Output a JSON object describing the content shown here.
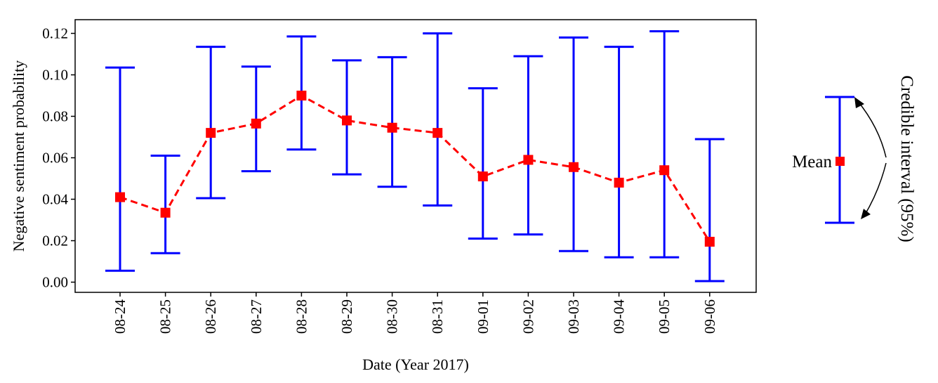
{
  "chart_data": {
    "type": "line",
    "title": "",
    "xlabel": "Date (Year 2017)",
    "ylabel": "Negative sentiment probability",
    "ylim": [
      -0.005,
      0.125
    ],
    "yticks": [
      0.0,
      0.02,
      0.04,
      0.06,
      0.08,
      0.1,
      0.12
    ],
    "ytick_labels": [
      "0.00",
      "0.02",
      "0.04",
      "0.06",
      "0.08",
      "0.10",
      "0.12"
    ],
    "categories": [
      "08-24",
      "08-25",
      "08-26",
      "08-27",
      "08-28",
      "08-29",
      "08-30",
      "08-31",
      "09-01",
      "09-02",
      "09-03",
      "09-04",
      "09-05",
      "09-06"
    ],
    "series": [
      {
        "mean": [
          0.041,
          0.0335,
          0.072,
          0.0765,
          0.09,
          0.078,
          0.0745,
          0.072,
          0.051,
          0.059,
          0.0555,
          0.048,
          0.054,
          0.0195
        ],
        "lower": [
          0.0055,
          0.014,
          0.0405,
          0.0535,
          0.064,
          0.052,
          0.046,
          0.037,
          0.021,
          0.023,
          0.015,
          0.012,
          0.012,
          0.0005
        ],
        "upper": [
          0.1035,
          0.061,
          0.1135,
          0.104,
          0.1185,
          0.107,
          0.1085,
          0.12,
          0.0935,
          0.109,
          0.118,
          0.1135,
          0.121,
          0.069
        ],
        "mean_color": "#ff0000",
        "interval_color": "#0000ff",
        "line_style": "dashed",
        "marker": "square"
      }
    ],
    "grid": false,
    "legend": {
      "placement": "right",
      "mean_label": "Mean",
      "interval_label": "Credible interval (95%)"
    }
  }
}
